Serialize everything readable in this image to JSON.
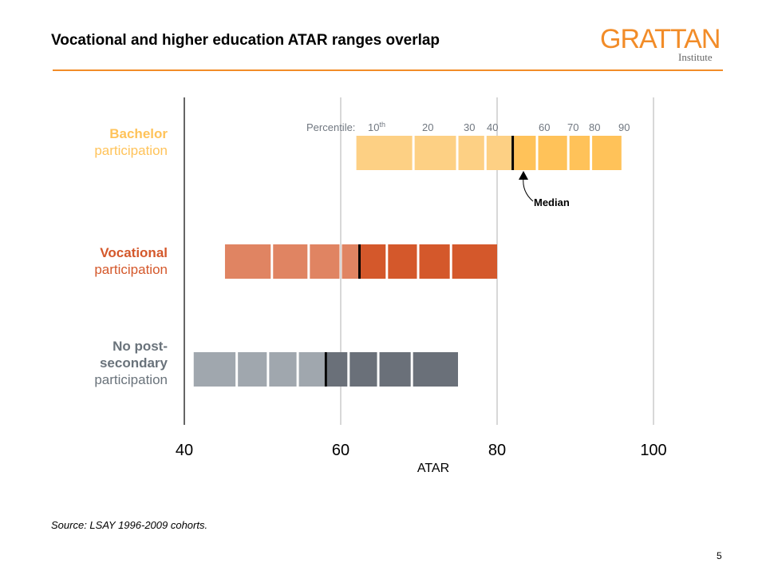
{
  "title": "Vocational and higher education ATAR ranges overlap",
  "logo": {
    "main": "GRATTAN",
    "sub": "Institute"
  },
  "source": "Source: LSAY 1996-2009 cohorts.",
  "page_number": "5",
  "colors": {
    "accent": "#F28C28"
  },
  "chart_data": {
    "type": "bar",
    "subtype": "percentile-range-bars",
    "xlabel": "ATAR",
    "xlim": [
      40,
      100
    ],
    "xticks": [
      "40",
      "60",
      "80",
      "100"
    ],
    "grid": true,
    "percentile_prefix": "Percentile:",
    "percentile_labels": [
      "10th",
      "20",
      "30",
      "40",
      "60",
      "70",
      "80",
      "90"
    ],
    "median_label": "Median",
    "series": [
      {
        "name_bold": "Bachelor",
        "name_rest": "participation",
        "color_light": "#FDD084",
        "color_dark": "#FFC259",
        "label_color": "#FFC35A",
        "boundaries": [
          62.0,
          69.3,
          74.9,
          78.5,
          82.0,
          85.1,
          89.1,
          92.0,
          95.9
        ],
        "median": 82.0
      },
      {
        "name_bold": "Vocational",
        "name_rest": "participation",
        "color_light": "#E08462",
        "color_dark": "#D4582B",
        "label_color": "#D4582B",
        "boundaries": [
          45.2,
          51.2,
          55.9,
          60.0,
          62.4,
          65.9,
          69.9,
          74.1,
          80.0
        ],
        "median": 62.4
      },
      {
        "name_bold": "No post-secondary",
        "name_rest": "participation",
        "color_light": "#A0A7AE",
        "color_dark": "#6A7079",
        "label_color": "#6A737B",
        "boundaries": [
          41.2,
          46.7,
          50.7,
          54.5,
          58.1,
          61.0,
          64.8,
          69.1,
          75.0
        ],
        "median": 58.1
      }
    ]
  }
}
